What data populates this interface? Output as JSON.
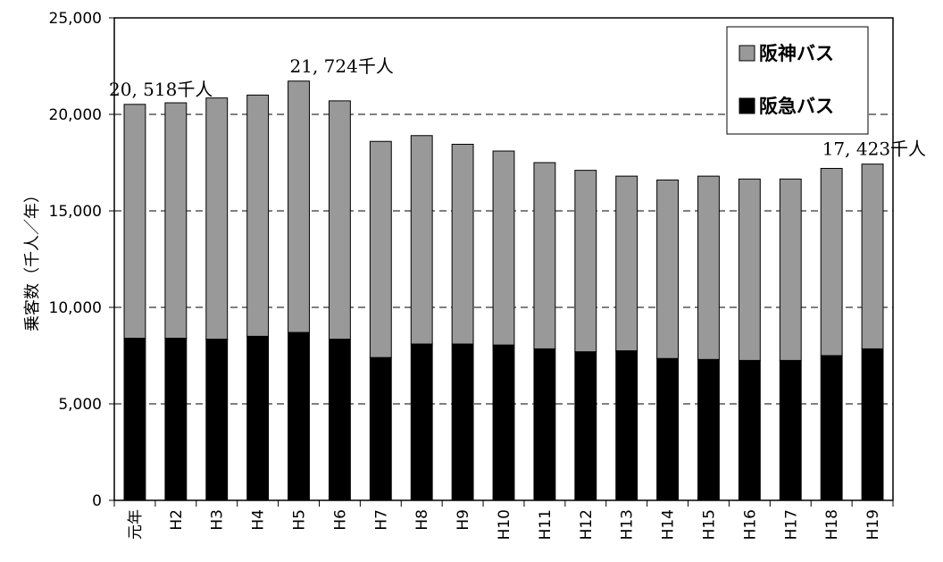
{
  "chart_data": {
    "type": "bar",
    "stacked": true,
    "categories": [
      "元年",
      "H2",
      "H3",
      "H4",
      "H5",
      "H6",
      "H7",
      "H8",
      "H9",
      "H10",
      "H11",
      "H12",
      "H13",
      "H14",
      "H15",
      "H16",
      "H17",
      "H18",
      "H19"
    ],
    "series": [
      {
        "name": "阪急バス",
        "color": "#000000",
        "values": [
          8400,
          8400,
          8350,
          8500,
          8700,
          8350,
          7400,
          8100,
          8100,
          8050,
          7850,
          7700,
          7750,
          7350,
          7300,
          7250,
          7250,
          7500,
          7850
        ]
      },
      {
        "name": "阪神バス",
        "color": "#999999",
        "values": [
          12118,
          12200,
          12500,
          12500,
          13024,
          12350,
          11200,
          10800,
          10350,
          10050,
          9650,
          9400,
          9050,
          9250,
          9500,
          9400,
          9400,
          9700,
          9573
        ]
      }
    ],
    "ylabel": "乗客数（千人／年）",
    "ylim": [
      0,
      25000
    ],
    "yticks": [
      0,
      5000,
      10000,
      15000,
      20000,
      25000
    ],
    "ytick_labels": [
      "0",
      "5,000",
      "10,000",
      "15,000",
      "20,000",
      "25,000"
    ],
    "gridlines": {
      "dashed_at": [
        5000,
        10000,
        15000,
        20000
      ]
    },
    "annotations": [
      {
        "category": "元年",
        "text": "20, 518千人"
      },
      {
        "category": "H5",
        "text": "21, 724千人"
      },
      {
        "category": "H19",
        "text": "17, 423千人"
      }
    ],
    "legend": {
      "placement": "top-right",
      "order": [
        "阪神バス",
        "阪急バス"
      ]
    }
  }
}
